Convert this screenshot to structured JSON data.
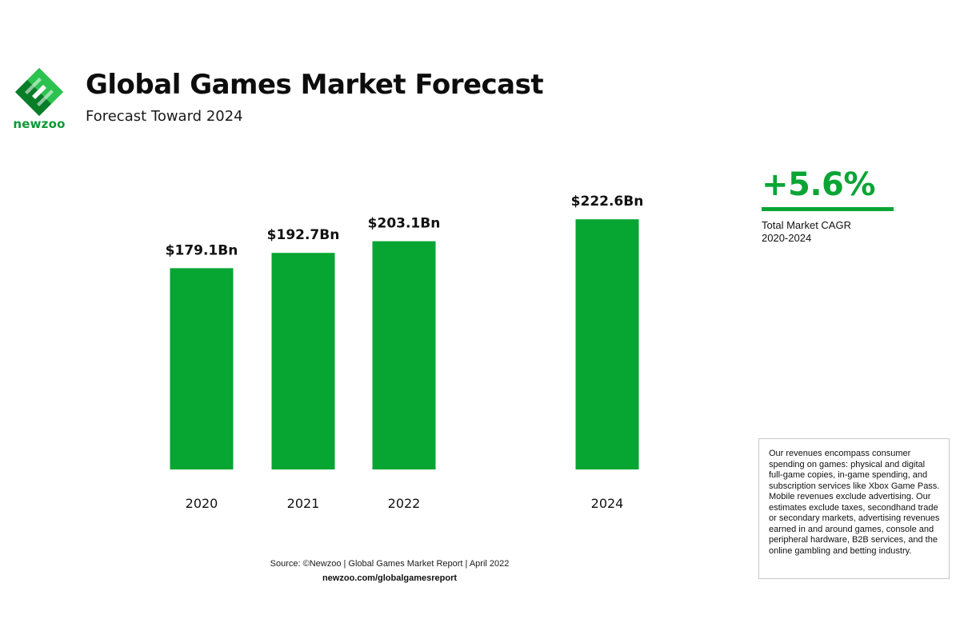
{
  "brand": {
    "name": "newzoo",
    "color": "#0aa535"
  },
  "header": {
    "title": "Global Games Market Forecast",
    "subtitle": "Forecast Toward 2024"
  },
  "chart_data": {
    "type": "bar",
    "categories": [
      "2020",
      "2021",
      "2022",
      "2024"
    ],
    "values": [
      179.1,
      192.7,
      203.1,
      222.6
    ],
    "value_labels": [
      "$179.1Bn",
      "$192.7Bn",
      "$203.1Bn",
      "$222.6Bn"
    ],
    "unit": "Bn USD",
    "bar_color": "#07a532",
    "gap_before_2024": true,
    "grid": false,
    "axes_visible": false,
    "title": "",
    "xlabel": "",
    "ylabel": ""
  },
  "cagr": {
    "value": "+5.6%",
    "label_line1": "Total Market CAGR",
    "label_line2": "2020-2024"
  },
  "note": {
    "text": "Our revenues encompass consumer spending on games: physical and digital full-game copies, in-game spending, and subscription services like Xbox Game Pass. Mobile revenues exclude advertising. Our estimates exclude taxes, secondhand trade or secondary markets, advertising revenues earned in and around games, console and peripheral hardware, B2B services, and the online gambling and betting industry."
  },
  "footer": {
    "source": "Source: ©Newzoo | Global Games Market Report | April 2022",
    "link": "newzoo.com/globalgamesreport"
  }
}
